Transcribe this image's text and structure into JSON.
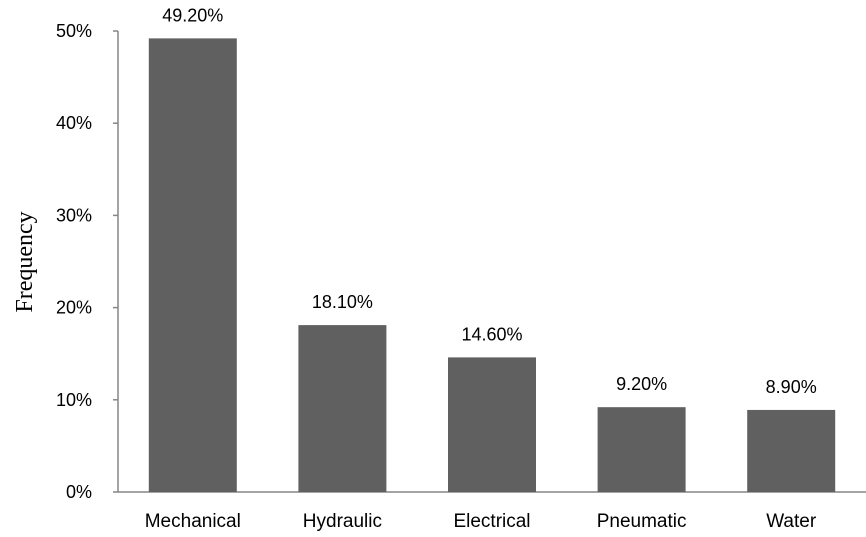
{
  "chart_data": {
    "type": "bar",
    "categories": [
      "Mechanical",
      "Hydraulic",
      "Electrical",
      "Pneumatic",
      "Water"
    ],
    "values": [
      49.2,
      18.1,
      14.6,
      9.2,
      8.9
    ],
    "data_labels": [
      "49.20%",
      "18.10%",
      "14.60%",
      "9.20%",
      "8.90%"
    ],
    "ylabel": "Frequency",
    "ylim": [
      0,
      50
    ],
    "yticks": [
      0,
      10,
      20,
      30,
      40,
      50
    ],
    "ytick_labels": [
      "0%",
      "10%",
      "20%",
      "30%",
      "40%",
      "50%"
    ],
    "grid": false,
    "legend": "none",
    "bar_color": "#606060"
  }
}
